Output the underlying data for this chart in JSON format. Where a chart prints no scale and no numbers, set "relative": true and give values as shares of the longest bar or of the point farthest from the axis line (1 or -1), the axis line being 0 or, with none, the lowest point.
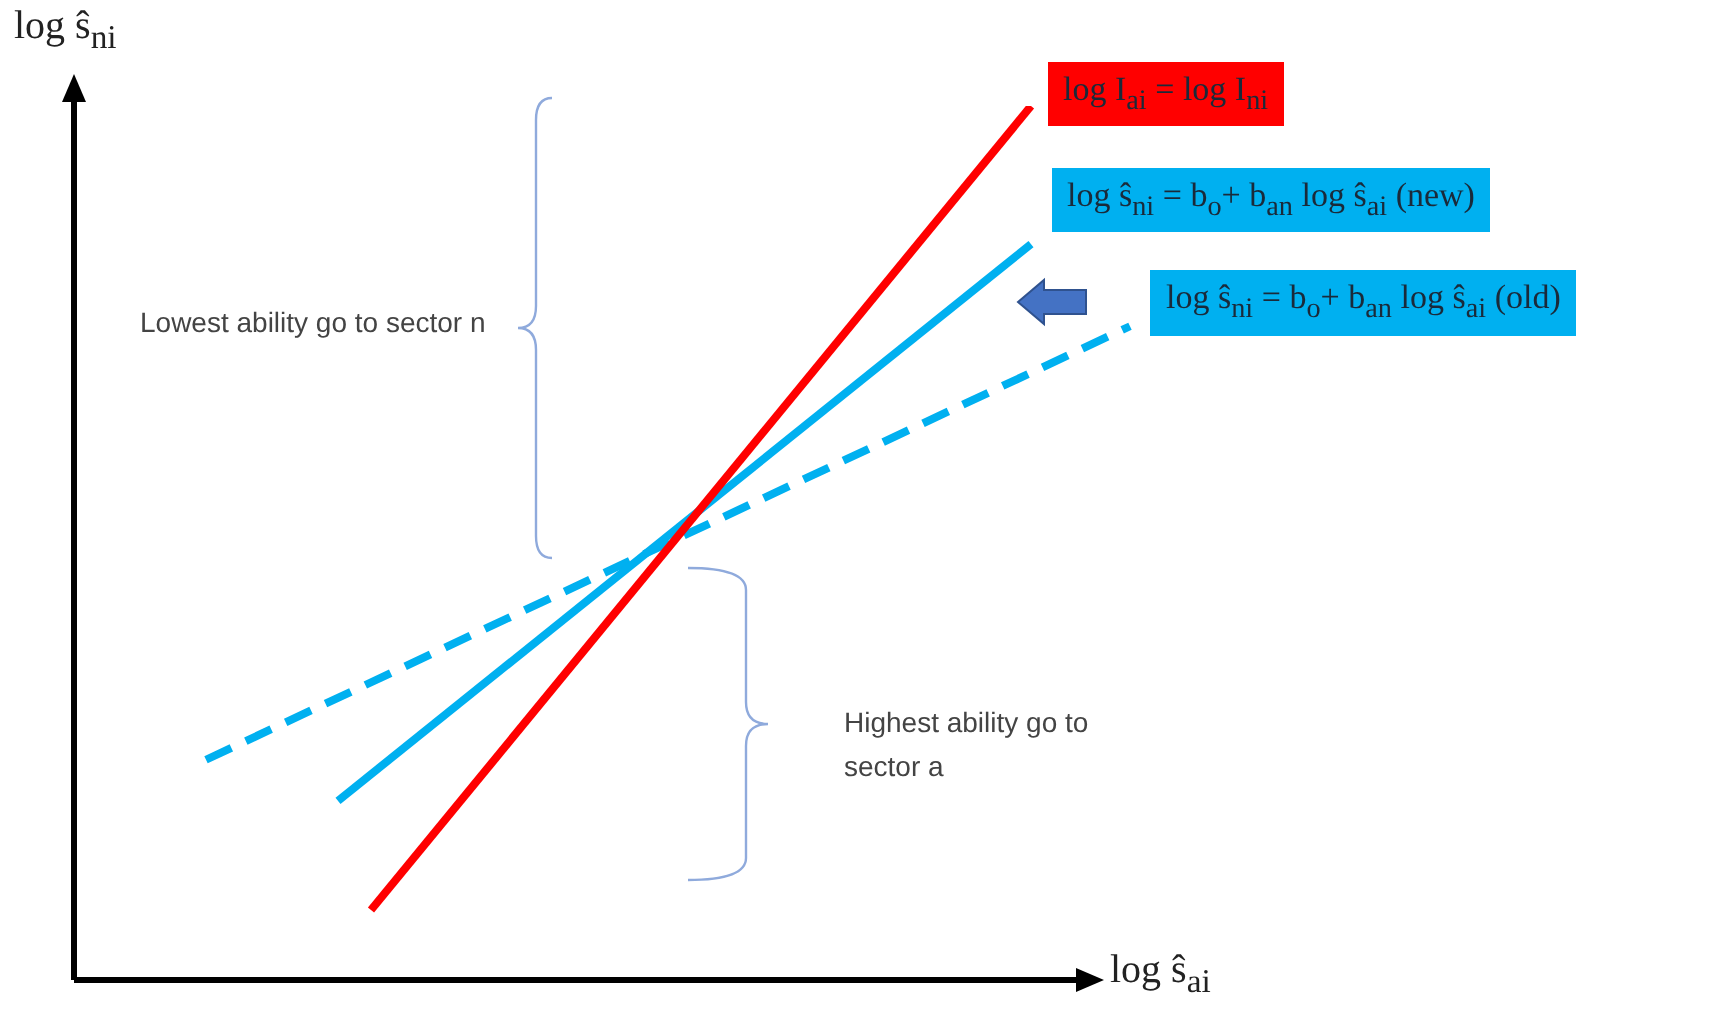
{
  "chart_data": {
    "type": "line",
    "relative": true,
    "marker": "none",
    "xlabel": "log ŝ$_{ai}$",
    "ylabel": "log ŝ$_{ni}$",
    "categories": [
      null,
      null,
      null,
      null,
      null,
      null,
      null,
      null,
      null,
      null,
      null,
      null,
      null,
      null,
      null,
      null,
      null,
      null,
      null,
      null,
      null,
      null,
      null,
      null,
      null,
      null,
      null,
      null,
      null,
      null,
      null,
      null,
      null
    ],
    "annotations": [
      "Lowest ability go to sector n",
      "Highest ability go to sector a"
    ],
    "series": [
      {
        "name": "log I$_{ai}$ = log I$_{ni}$",
        "color": "#ff0000",
        "line_style": "solid",
        "values": [
          null,
          null,
          null,
          null,
          null,
          null,
          null,
          null,
          null,
          0.08,
          null,
          null,
          null,
          null,
          null,
          null,
          null,
          null,
          null,
          null,
          null,
          null,
          null,
          null,
          null,
          null,
          null,
          null,
          null,
          1,
          null,
          null,
          null
        ]
      },
      {
        "name": "log ŝ$_{ni}$ = b$_{o}$+ b$_{an}$  log ŝ$_{ai}$  (new)",
        "color": "#00b0f0",
        "line_style": "solid",
        "values": [
          null,
          null,
          null,
          null,
          null,
          null,
          null,
          null,
          0.205,
          null,
          null,
          null,
          null,
          null,
          null,
          null,
          null,
          null,
          null,
          null,
          null,
          null,
          null,
          null,
          null,
          null,
          null,
          null,
          null,
          0.842,
          null,
          null,
          null
        ]
      },
      {
        "name": "log ŝ$_{ni}$ = b$_{o}$+ b$_{an}$  log ŝ$_{ai}$  (old)",
        "color": "#00b0f0",
        "line_style": "dashed",
        "values": [
          null,
          null,
          null,
          null,
          0.252,
          null,
          null,
          null,
          null,
          null,
          null,
          null,
          null,
          null,
          null,
          null,
          null,
          null,
          null,
          null,
          null,
          null,
          null,
          null,
          null,
          null,
          null,
          null,
          null,
          null,
          null,
          null,
          0.748
        ]
      }
    ]
  }
}
